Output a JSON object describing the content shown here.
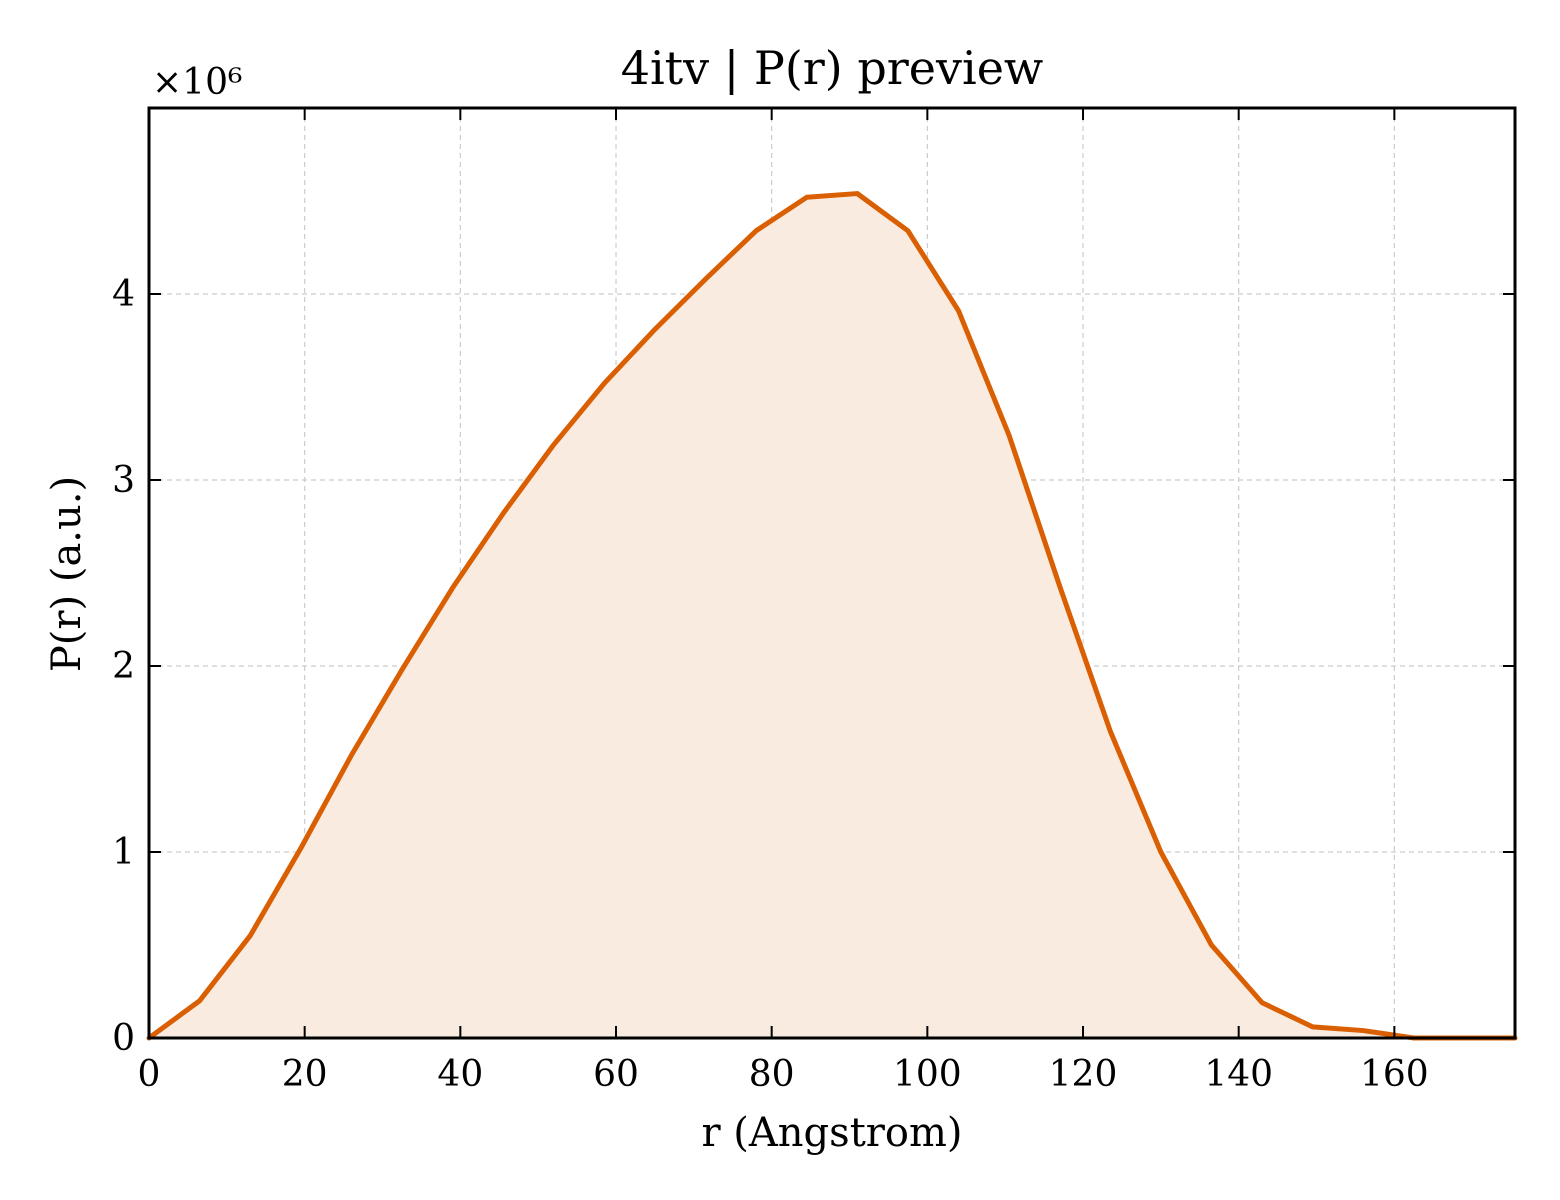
{
  "chart_data": {
    "type": "area",
    "title": "4itv | P(r) preview",
    "xlabel": "r (Angstrom)",
    "ylabel": "P(r) (a.u.)",
    "y_offset_label": "×10⁶",
    "xlim": [
      0,
      175.5
    ],
    "ylim": [
      0,
      5.0
    ],
    "x_ticks": [
      0,
      20,
      40,
      60,
      80,
      100,
      120,
      140,
      160
    ],
    "y_ticks": [
      0,
      1,
      2,
      3,
      4
    ],
    "grid": true,
    "colors": {
      "line": "#d95f02",
      "fill": "#f9ebe0"
    },
    "series": [
      {
        "x": [
          0,
          6.5,
          13,
          19.5,
          26,
          32.5,
          39,
          45.5,
          52,
          58.5,
          65,
          71.5,
          78,
          84.5,
          91,
          97.5,
          104,
          110.5,
          117,
          123.5,
          130,
          136.5,
          143,
          149.5,
          156,
          162.5,
          169,
          175.5
        ],
        "y": [
          0,
          0.2,
          0.55,
          1.02,
          1.52,
          1.98,
          2.42,
          2.82,
          3.19,
          3.52,
          3.81,
          4.08,
          4.34,
          4.52,
          4.54,
          4.34,
          3.91,
          3.24,
          2.43,
          1.65,
          1.0,
          0.5,
          0.19,
          0.06,
          0.04,
          0.0,
          0.0,
          0.0
        ]
      }
    ]
  }
}
